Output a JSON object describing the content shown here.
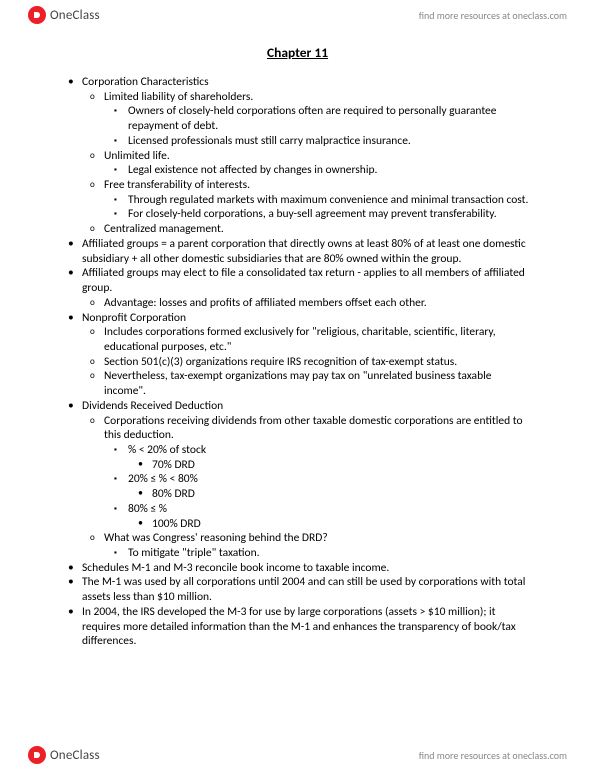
{
  "brand": "OneClass",
  "find_link": "find more resources at oneclass.com",
  "title": "Chapter 11",
  "colors": {
    "accent_red": "#ec2027",
    "text": "#222222",
    "muted": "#6b6b6b"
  },
  "fontsize": {
    "body": 11.5,
    "title": 13.5,
    "header": 11
  },
  "l1": [
    {
      "text": "Corporation Characteristics",
      "children": [
        {
          "text": "Limited liability of shareholders.",
          "children": [
            {
              "text": "Owners of closely-held corporations often are required to personally guarantee repayment of debt."
            },
            {
              "text": "Licensed professionals must still carry malpractice insurance."
            }
          ]
        },
        {
          "text": "Unlimited life.",
          "children": [
            {
              "text": "Legal existence not affected by changes in ownership."
            }
          ]
        },
        {
          "text": "Free transferability of interests.",
          "children": [
            {
              "text": "Through regulated markets with maximum convenience and minimal transaction cost."
            },
            {
              "text": "For closely-held corporations, a buy-sell agreement may prevent transferability."
            }
          ]
        },
        {
          "text": "Centralized management."
        }
      ]
    },
    {
      "text": "Affiliated groups = a parent corporation that directly owns at least 80% of at least one domestic subsidiary + all other domestic subsidiaries that are 80% owned within the group."
    },
    {
      "text": "Affiliated groups may elect to file a consolidated tax return - applies to all members of affiliated group.",
      "children": [
        {
          "text": "Advantage:  losses and profits of affiliated members offset each other."
        }
      ]
    },
    {
      "text": "Nonprofit Corporation",
      "children": [
        {
          "text": "Includes corporations formed exclusively for \"religious, charitable, scientific, literary, educational purposes, etc.\""
        },
        {
          "text": "Section 501(c)(3) organizations require IRS recognition of tax-exempt status."
        },
        {
          "text": "Nevertheless, tax-exempt organizations may pay tax on \"unrelated business taxable income\"."
        }
      ]
    },
    {
      "text": "Dividends Received Deduction",
      "children": [
        {
          "text": "Corporations receiving dividends from other taxable domestic corporations are entitled to this deduction.",
          "children": [
            {
              "text": "% < 20% of stock",
              "children": [
                {
                  "text": "70% DRD"
                }
              ]
            },
            {
              "text": "20% ≤ % < 80%",
              "children": [
                {
                  "text": "80% DRD"
                }
              ]
            },
            {
              "text": "80% ≤ %",
              "children": [
                {
                  "text": "100% DRD"
                }
              ]
            }
          ]
        },
        {
          "text": "What was Congress' reasoning behind the DRD?",
          "children": [
            {
              "text": "To mitigate \"triple\" taxation."
            }
          ]
        }
      ]
    },
    {
      "text": "Schedules M-1 and M-3 reconcile book income to taxable income."
    },
    {
      "text": "The M-1 was used by all corporations until 2004 and can still be used by corporations with total assets less than $10 million."
    },
    {
      "text": "In 2004, the IRS developed the M-3 for use by large corporations (assets > $10 million); it requires more detailed information than the M-1 and enhances the transparency of book/tax differences."
    }
  ]
}
